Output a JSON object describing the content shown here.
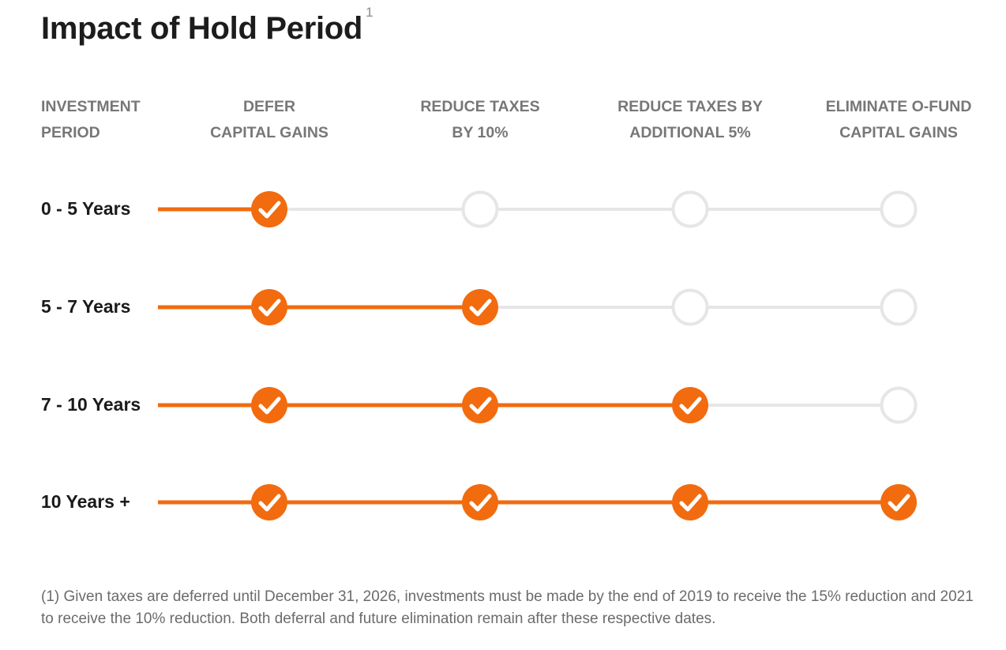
{
  "title": "Impact of Hold Period",
  "title_superscript": "1",
  "column_headers": [
    {
      "line1": "INVESTMENT",
      "line2": "PERIOD"
    },
    {
      "line1": "DEFER",
      "line2": "CAPITAL GAINS"
    },
    {
      "line1": "REDUCE TAXES",
      "line2": "BY 10%"
    },
    {
      "line1": "REDUCE TAXES BY",
      "line2": "ADDITIONAL 5%"
    },
    {
      "line1": "ELIMINATE O-FUND",
      "line2": "CAPITAL GAINS"
    }
  ],
  "rows": [
    {
      "label": "0 - 5 Years",
      "benefits_achieved": 1
    },
    {
      "label": "5 - 7 Years",
      "benefits_achieved": 2
    },
    {
      "label": "7 - 10 Years",
      "benefits_achieved": 3
    },
    {
      "label": "10 Years +",
      "benefits_achieved": 4
    }
  ],
  "benefit_count": 4,
  "colors": {
    "accent": "#f26b0f",
    "inactive": "#e6e6e6",
    "check": "#ffffff"
  },
  "footnote": "(1) Given taxes are deferred until December 31, 2026, investments must be made by the end of 2019 to receive the 15% reduction and 2021 to receive the 10% reduction. Both deferral and future elimination remain after these respective dates."
}
